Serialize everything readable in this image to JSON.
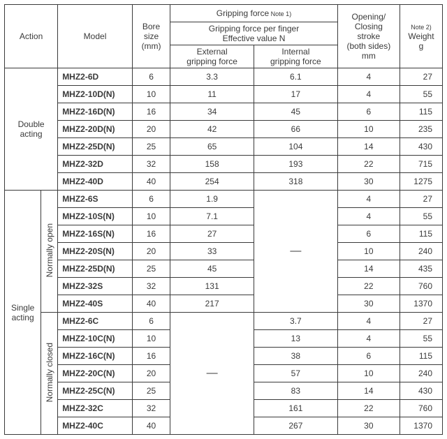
{
  "headers": {
    "action": "Action",
    "model": "Model",
    "bore_l1": "Bore",
    "bore_l2": "size",
    "bore_l3": "(mm)",
    "gripforce": "Gripping force",
    "gripforce_note": " Note 1)",
    "perfinger_l1": "Gripping force per finger",
    "perfinger_l2": "Effective value N",
    "ext_l1": "External",
    "ext_l2": "gripping force",
    "int_l1": "Internal",
    "int_l2": "gripping force",
    "stroke_l1": "Opening/",
    "stroke_l2": "Closing",
    "stroke_l3": "stroke",
    "stroke_l4": "(both sides)",
    "stroke_l5": "mm",
    "weight_note": "Note 2)",
    "weight_l1": "Weight",
    "weight_l2": "g"
  },
  "groups": {
    "double": "Double\nacting",
    "single": "Single\nacting",
    "normopen": "Normally open",
    "normclosed": "Normally closed"
  },
  "dash": "—",
  "rows": {
    "d0": {
      "model": "MHZ2-6D",
      "bore": "6",
      "ext": "3.3",
      "int": "6.1",
      "stroke": "4",
      "weight": "27"
    },
    "d1": {
      "model": "MHZ2-10D(N)",
      "bore": "10",
      "ext": "11",
      "int": "17",
      "stroke": "4",
      "weight": "55"
    },
    "d2": {
      "model": "MHZ2-16D(N)",
      "bore": "16",
      "ext": "34",
      "int": "45",
      "stroke": "6",
      "weight": "115"
    },
    "d3": {
      "model": "MHZ2-20D(N)",
      "bore": "20",
      "ext": "42",
      "int": "66",
      "stroke": "10",
      "weight": "235"
    },
    "d4": {
      "model": "MHZ2-25D(N)",
      "bore": "25",
      "ext": "65",
      "int": "104",
      "stroke": "14",
      "weight": "430"
    },
    "d5": {
      "model": "MHZ2-32D",
      "bore": "32",
      "ext": "158",
      "int": "193",
      "stroke": "22",
      "weight": "715"
    },
    "d6": {
      "model": "MHZ2-40D",
      "bore": "40",
      "ext": "254",
      "int": "318",
      "stroke": "30",
      "weight": "1275"
    },
    "s0": {
      "model": "MHZ2-6S",
      "bore": "6",
      "ext": "1.9",
      "stroke": "4",
      "weight": "27"
    },
    "s1": {
      "model": "MHZ2-10S(N)",
      "bore": "10",
      "ext": "7.1",
      "stroke": "4",
      "weight": "55"
    },
    "s2": {
      "model": "MHZ2-16S(N)",
      "bore": "16",
      "ext": "27",
      "stroke": "6",
      "weight": "115"
    },
    "s3": {
      "model": "MHZ2-20S(N)",
      "bore": "20",
      "ext": "33",
      "stroke": "10",
      "weight": "240"
    },
    "s4": {
      "model": "MHZ2-25D(N)",
      "bore": "25",
      "ext": "45",
      "stroke": "14",
      "weight": "435"
    },
    "s5": {
      "model": "MHZ2-32S",
      "bore": "32",
      "ext": "131",
      "stroke": "22",
      "weight": "760"
    },
    "s6": {
      "model": "MHZ2-40S",
      "bore": "40",
      "ext": "217",
      "stroke": "30",
      "weight": "1370"
    },
    "c0": {
      "model": "MHZ2-6C",
      "bore": "6",
      "int": "3.7",
      "stroke": "4",
      "weight": "27"
    },
    "c1": {
      "model": "MHZ2-10C(N)",
      "bore": "10",
      "int": "13",
      "stroke": "4",
      "weight": "55"
    },
    "c2": {
      "model": "MHZ2-16C(N)",
      "bore": "16",
      "int": "38",
      "stroke": "6",
      "weight": "115"
    },
    "c3": {
      "model": "MHZ2-20C(N)",
      "bore": "20",
      "int": "57",
      "stroke": "10",
      "weight": "240"
    },
    "c4": {
      "model": "MHZ2-25C(N)",
      "bore": "25",
      "int": "83",
      "stroke": "14",
      "weight": "430"
    },
    "c5": {
      "model": "MHZ2-32C",
      "bore": "32",
      "int": "161",
      "stroke": "22",
      "weight": "760"
    },
    "c6": {
      "model": "MHZ2-40C",
      "bore": "40",
      "int": "267",
      "stroke": "30",
      "weight": "1370"
    }
  }
}
